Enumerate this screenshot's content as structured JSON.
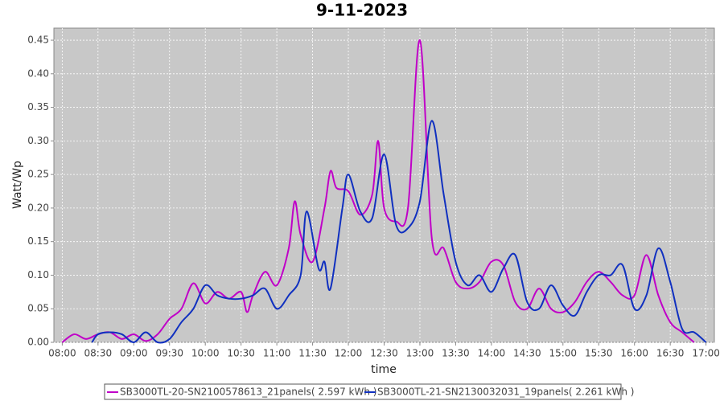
{
  "chart_data": {
    "type": "line",
    "title": "9-11-2023",
    "x_label": "time",
    "y_label": "Watt/Wp",
    "xlim": [
      "07:53",
      "17:07"
    ],
    "xticks": [
      "08:00",
      "08:30",
      "09:00",
      "09:30",
      "10:00",
      "10:30",
      "11:00",
      "11:30",
      "12:00",
      "12:30",
      "13:00",
      "13:30",
      "14:00",
      "14:30",
      "15:00",
      "15:30",
      "16:00",
      "16:30",
      "17:00"
    ],
    "ylim": [
      0,
      0.468
    ],
    "yticks": [
      {
        "value": 0,
        "label": "0.00"
      },
      0.05,
      {
        "value": 0.1,
        "label": "0.10"
      },
      0.15,
      {
        "value": 0.2,
        "label": "0.20"
      },
      0.25,
      {
        "value": 0.3,
        "label": "0.30"
      },
      0.35,
      {
        "value": 0.4,
        "label": "0.40"
      },
      0.45
    ],
    "grid": true,
    "legend": "bottom",
    "series": [
      {
        "name": "SB3000TL-20-SN2100578613_21panels( 2.597 kWh )",
        "color": "#c000c8",
        "x": [
          "08:00",
          "08:10",
          "08:20",
          "08:30",
          "08:40",
          "08:50",
          "09:00",
          "09:10",
          "09:20",
          "09:30",
          "09:40",
          "09:50",
          "10:00",
          "10:10",
          "10:20",
          "10:30",
          "10:35",
          "10:40",
          "10:50",
          "11:00",
          "11:10",
          "11:15",
          "11:20",
          "11:30",
          "11:40",
          "11:45",
          "11:50",
          "12:00",
          "12:10",
          "12:20",
          "12:25",
          "12:30",
          "12:40",
          "12:50",
          "13:00",
          "13:10",
          "13:20",
          "13:30",
          "13:40",
          "13:50",
          "14:00",
          "14:10",
          "14:20",
          "14:30",
          "14:40",
          "14:50",
          "15:00",
          "15:10",
          "15:20",
          "15:30",
          "15:40",
          "15:50",
          "16:00",
          "16:10",
          "16:20",
          "16:30",
          "16:40",
          "16:50"
        ],
        "values": [
          0,
          0.012,
          0.005,
          0.012,
          0.015,
          0.005,
          0.012,
          0.002,
          0.012,
          0.035,
          0.05,
          0.088,
          0.058,
          0.075,
          0.065,
          0.075,
          0.045,
          0.07,
          0.105,
          0.085,
          0.14,
          0.21,
          0.16,
          0.12,
          0.2,
          0.255,
          0.23,
          0.225,
          0.19,
          0.22,
          0.3,
          0.2,
          0.18,
          0.2,
          0.45,
          0.155,
          0.14,
          0.09,
          0.08,
          0.09,
          0.12,
          0.115,
          0.06,
          0.05,
          0.08,
          0.05,
          0.045,
          0.06,
          0.09,
          0.105,
          0.09,
          0.07,
          0.07,
          0.13,
          0.07,
          0.03,
          0.015,
          0
        ]
      },
      {
        "name": "SB3000TL-21-SN2130032031_19panels( 2.261 kWh )",
        "color": "#1030c0",
        "x": [
          "08:25",
          "08:30",
          "08:40",
          "08:50",
          "09:00",
          "09:10",
          "09:20",
          "09:30",
          "09:40",
          "09:50",
          "10:00",
          "10:10",
          "10:20",
          "10:30",
          "10:40",
          "10:50",
          "11:00",
          "11:10",
          "11:20",
          "11:25",
          "11:35",
          "11:40",
          "11:45",
          "11:55",
          "12:00",
          "12:10",
          "12:20",
          "12:30",
          "12:40",
          "12:50",
          "13:00",
          "13:10",
          "13:20",
          "13:30",
          "13:40",
          "13:50",
          "14:00",
          "14:10",
          "14:20",
          "14:30",
          "14:40",
          "14:50",
          "15:00",
          "15:10",
          "15:20",
          "15:30",
          "15:40",
          "15:50",
          "16:00",
          "16:10",
          "16:20",
          "16:30",
          "16:40",
          "16:50",
          "17:00"
        ],
        "values": [
          0,
          0.012,
          0.015,
          0.012,
          0,
          0.015,
          0,
          0.005,
          0.03,
          0.05,
          0.085,
          0.07,
          0.065,
          0.065,
          0.07,
          0.08,
          0.05,
          0.07,
          0.1,
          0.195,
          0.11,
          0.12,
          0.08,
          0.2,
          0.25,
          0.195,
          0.185,
          0.28,
          0.175,
          0.17,
          0.21,
          0.33,
          0.22,
          0.12,
          0.085,
          0.1,
          0.075,
          0.11,
          0.13,
          0.06,
          0.05,
          0.085,
          0.055,
          0.04,
          0.075,
          0.1,
          0.1,
          0.115,
          0.05,
          0.07,
          0.14,
          0.09,
          0.02,
          0.015,
          0
        ]
      }
    ]
  }
}
